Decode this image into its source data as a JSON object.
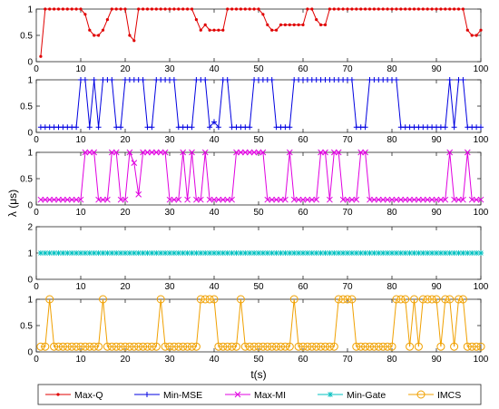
{
  "chart_data": {
    "type": "line",
    "ylabel": "λ (μs)",
    "xlabel": "t(s)",
    "xlim": [
      0,
      100
    ],
    "xticks": [
      "0",
      "10",
      "20",
      "30",
      "40",
      "50",
      "60",
      "70",
      "80",
      "90",
      "100"
    ],
    "grid": false,
    "legend_position": "bottom",
    "legend": [
      "Max-Q",
      "Min-MSE",
      "Max-MI",
      "Min-Gate",
      "IMCS"
    ],
    "panels": [
      {
        "name": "Max-Q",
        "color": "#e00000",
        "marker": "dot",
        "ylim": [
          0,
          1
        ],
        "yticks": [
          "0",
          "0.5",
          "1"
        ],
        "x_start": 1,
        "values": [
          0.1,
          1,
          1,
          1,
          1,
          1,
          1,
          1,
          1,
          1,
          0.9,
          0.6,
          0.5,
          0.5,
          0.6,
          0.8,
          1,
          1,
          1,
          1,
          0.5,
          0.4,
          1,
          1,
          1,
          1,
          1,
          1,
          1,
          1,
          1,
          1,
          1,
          1,
          1,
          0.8,
          0.6,
          0.7,
          0.6,
          0.6,
          0.6,
          0.6,
          1,
          1,
          1,
          1,
          1,
          1,
          1,
          1,
          0.9,
          0.7,
          0.6,
          0.6,
          0.7,
          0.7,
          0.7,
          0.7,
          0.7,
          0.7,
          1,
          1,
          0.8,
          0.7,
          0.7,
          1,
          1,
          1,
          1,
          1,
          1,
          1,
          1,
          1,
          1,
          1,
          1,
          1,
          1,
          1,
          1,
          1,
          1,
          1,
          1,
          1,
          1,
          1,
          1,
          1,
          1,
          1,
          1,
          1,
          1,
          1,
          0.6,
          0.5,
          0.5,
          0.6
        ]
      },
      {
        "name": "Min-MSE",
        "color": "#0000e0",
        "marker": "plus",
        "ylim": [
          0,
          1
        ],
        "yticks": [
          "0",
          "0.5",
          "1"
        ],
        "x_start": 1,
        "values": [
          0.1,
          0.1,
          0.1,
          0.1,
          0.1,
          0.1,
          0.1,
          0.1,
          0.1,
          1,
          1,
          0.1,
          1,
          0.1,
          1,
          1,
          1,
          0.1,
          0.1,
          1,
          1,
          1,
          1,
          1,
          0.1,
          0.1,
          1,
          1,
          1,
          1,
          1,
          0.1,
          0.1,
          0.1,
          0.1,
          1,
          1,
          1,
          0.1,
          0.2,
          0.1,
          1,
          1,
          0.1,
          0.1,
          0.1,
          0.1,
          0.1,
          1,
          1,
          1,
          1,
          1,
          0.1,
          0.1,
          0.1,
          0.1,
          1,
          1,
          1,
          1,
          1,
          1,
          1,
          1,
          1,
          1,
          1,
          1,
          1,
          1,
          0.1,
          0.1,
          0.1,
          1,
          1,
          1,
          1,
          1,
          1,
          1,
          0.1,
          0.1,
          0.1,
          0.1,
          0.1,
          0.1,
          0.1,
          0.1,
          0.1,
          0.1,
          0.1,
          1,
          0.1,
          1,
          1,
          0.1,
          0.1,
          0.1,
          0.1
        ]
      },
      {
        "name": "Max-MI",
        "color": "#e000e0",
        "marker": "x",
        "ylim": [
          0,
          1
        ],
        "yticks": [
          "0",
          "0.5",
          "1"
        ],
        "x_start": 1,
        "values": [
          0.1,
          0.1,
          0.1,
          0.1,
          0.1,
          0.1,
          0.1,
          0.1,
          0.1,
          0.1,
          1,
          1,
          1,
          0.1,
          0.1,
          0.1,
          1,
          1,
          0.1,
          0.1,
          1,
          0.8,
          0.2,
          1,
          1,
          1,
          1,
          1,
          1,
          0.1,
          0.1,
          0.1,
          1,
          0.1,
          1,
          0.1,
          0.1,
          1,
          0.1,
          0.1,
          0.1,
          0.1,
          0.1,
          0.1,
          1,
          1,
          1,
          1,
          1,
          1,
          1,
          0.1,
          0.1,
          0.1,
          0.1,
          0.1,
          1,
          0.1,
          0.1,
          0.1,
          0.1,
          0.1,
          0.1,
          1,
          1,
          0.1,
          1,
          1,
          0.1,
          0.1,
          0.1,
          0.1,
          1,
          1,
          0.1,
          0.1,
          0.1,
          0.1,
          0.1,
          0.1,
          0.1,
          0.1,
          0.1,
          0.1,
          0.1,
          0.1,
          0.1,
          0.1,
          0.1,
          0.1,
          0.1,
          0.1,
          1,
          0.1,
          0.1,
          0.1,
          1,
          0.1,
          0.1,
          0.1
        ]
      },
      {
        "name": "Min-Gate",
        "color": "#00c0c0",
        "marker": "star",
        "ylim": [
          0,
          2
        ],
        "yticks": [
          "0",
          "1",
          "2"
        ],
        "x_start": 1,
        "values": [
          1,
          1,
          1,
          1,
          1,
          1,
          1,
          1,
          1,
          1,
          1,
          1,
          1,
          1,
          1,
          1,
          1,
          1,
          1,
          1,
          1,
          1,
          1,
          1,
          1,
          1,
          1,
          1,
          1,
          1,
          1,
          1,
          1,
          1,
          1,
          1,
          1,
          1,
          1,
          1,
          1,
          1,
          1,
          1,
          1,
          1,
          1,
          1,
          1,
          1,
          1,
          1,
          1,
          1,
          1,
          1,
          1,
          1,
          1,
          1,
          1,
          1,
          1,
          1,
          1,
          1,
          1,
          1,
          1,
          1,
          1,
          1,
          1,
          1,
          1,
          1,
          1,
          1,
          1,
          1,
          1,
          1,
          1,
          1,
          1,
          1,
          1,
          1,
          1,
          1,
          1,
          1,
          1,
          1,
          1,
          1,
          1,
          1,
          1,
          1
        ]
      },
      {
        "name": "IMCS",
        "color": "#f0a000",
        "marker": "circle",
        "ylim": [
          0,
          1
        ],
        "yticks": [
          "0",
          "0.5",
          "1"
        ],
        "x_start": 1,
        "values": [
          0.1,
          0.1,
          1,
          0.1,
          0.1,
          0.1,
          0.1,
          0.1,
          0.1,
          0.1,
          0.1,
          0.1,
          0.1,
          0.1,
          1,
          0.1,
          0.1,
          0.1,
          0.1,
          0.1,
          0.1,
          0.1,
          0.1,
          0.1,
          0.1,
          0.1,
          0.1,
          1,
          0.1,
          0.1,
          0.1,
          0.1,
          0.1,
          0.1,
          0.1,
          0.1,
          1,
          1,
          1,
          1,
          0.1,
          0.1,
          0.1,
          0.1,
          0.1,
          1,
          0.1,
          0.1,
          0.1,
          0.1,
          0.1,
          0.1,
          0.1,
          0.1,
          0.1,
          0.1,
          0.1,
          1,
          0.1,
          0.1,
          0.1,
          0.1,
          0.1,
          0.1,
          0.1,
          0.1,
          0.1,
          1,
          1,
          1,
          1,
          0.1,
          0.1,
          0.1,
          0.1,
          0.1,
          0.1,
          0.1,
          0.1,
          0.1,
          1,
          1,
          1,
          0.1,
          1,
          0.1,
          1,
          1,
          1,
          1,
          0.1,
          1,
          1,
          0.1,
          1,
          1,
          0.1,
          0.1,
          0.1,
          0.1
        ]
      }
    ]
  }
}
